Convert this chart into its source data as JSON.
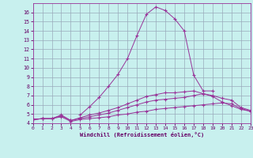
{
  "x": [
    0,
    1,
    2,
    3,
    4,
    5,
    6,
    7,
    8,
    9,
    10,
    11,
    12,
    13,
    14,
    15,
    16,
    17,
    18,
    19,
    20,
    21,
    22,
    23
  ],
  "line_main": [
    4.4,
    4.5,
    null,
    null,
    null,
    4.9,
    5.8,
    6.8,
    8.0,
    9.3,
    11.0,
    13.5,
    15.8,
    16.6,
    16.2,
    15.3,
    14.0,
    9.2,
    7.5,
    7.5,
    null,
    null,
    null,
    null
  ],
  "line_top": [
    4.4,
    4.5,
    4.5,
    4.9,
    4.3,
    4.6,
    4.9,
    5.1,
    5.4,
    5.7,
    6.1,
    6.5,
    6.9,
    7.1,
    7.3,
    7.3,
    7.4,
    7.5,
    7.2,
    6.9,
    6.3,
    5.9,
    5.5,
    5.3
  ],
  "line_mid": [
    4.4,
    4.5,
    4.5,
    4.8,
    4.3,
    4.5,
    4.7,
    4.9,
    5.1,
    5.4,
    5.7,
    6.0,
    6.3,
    6.5,
    6.6,
    6.7,
    6.8,
    7.0,
    7.2,
    7.0,
    6.7,
    6.5,
    5.7,
    5.4
  ],
  "line_bot": [
    4.4,
    4.5,
    4.5,
    4.7,
    4.2,
    4.4,
    4.5,
    4.6,
    4.7,
    4.9,
    5.0,
    5.2,
    5.3,
    5.5,
    5.6,
    5.7,
    5.8,
    5.9,
    6.0,
    6.1,
    6.2,
    6.1,
    5.6,
    5.3
  ],
  "color": "#993399",
  "bg_color": "#c8f0ee",
  "grid_color": "#99aabb",
  "xlabel": "Windchill (Refroidissement éolien,°C)",
  "ylim": [
    4,
    17
  ],
  "xlim": [
    0,
    23
  ],
  "yticks": [
    4,
    5,
    6,
    7,
    8,
    9,
    10,
    11,
    12,
    13,
    14,
    15,
    16
  ],
  "xticks": [
    0,
    1,
    2,
    3,
    4,
    5,
    6,
    7,
    8,
    9,
    10,
    11,
    12,
    13,
    14,
    15,
    16,
    17,
    18,
    19,
    20,
    21,
    22,
    23
  ]
}
